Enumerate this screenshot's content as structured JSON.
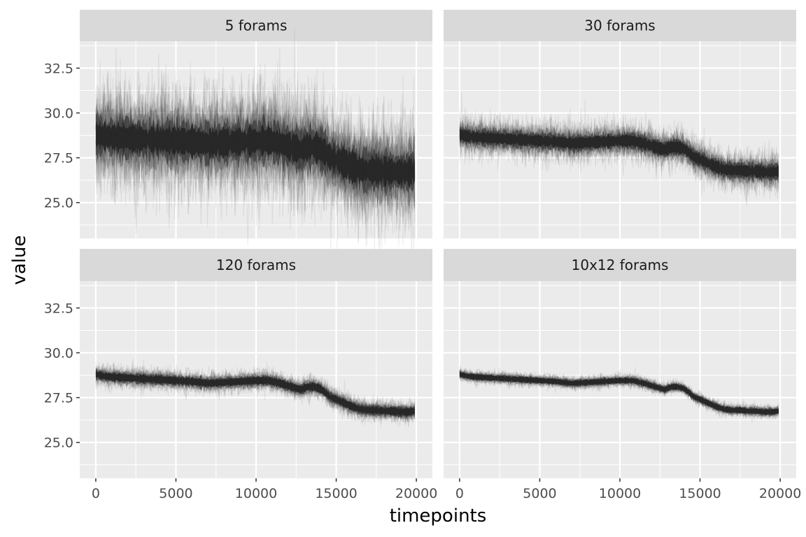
{
  "chart_data": {
    "type": "line",
    "xlabel": "timepoints",
    "ylabel": "value",
    "xlim": [
      -1000,
      21000
    ],
    "ylim": [
      23.0,
      34.0
    ],
    "x_ticks": [
      0,
      5000,
      10000,
      15000,
      20000
    ],
    "x_tick_labels": [
      "0",
      "5000",
      "10000",
      "15000",
      "20000"
    ],
    "y_ticks": [
      25.0,
      27.5,
      30.0,
      32.5
    ],
    "y_tick_labels": [
      "25.0",
      "27.5",
      "30.0",
      "32.5"
    ],
    "grid": true,
    "panel_background": "#ebebeb",
    "strip_background": "#d9d9d9",
    "line_color": "#262626",
    "mean_path": {
      "x": [
        0,
        500,
        1000,
        2000,
        3000,
        4000,
        5000,
        6000,
        7000,
        8000,
        9000,
        10000,
        10800,
        11500,
        12200,
        12800,
        13200,
        13600,
        14000,
        14300,
        14600,
        15000,
        15500,
        16000,
        16500,
        17000,
        17500,
        18000,
        18500,
        19000,
        19500,
        19900
      ],
      "y": [
        28.8,
        28.7,
        28.65,
        28.6,
        28.55,
        28.5,
        28.45,
        28.4,
        28.3,
        28.35,
        28.4,
        28.45,
        28.45,
        28.3,
        28.1,
        27.95,
        28.1,
        28.1,
        28.0,
        27.8,
        27.55,
        27.4,
        27.2,
        27.0,
        26.85,
        26.8,
        26.8,
        26.75,
        26.75,
        26.7,
        26.7,
        26.75
      ]
    },
    "panels": [
      {
        "title": "5 forams",
        "spread": 1.5
      },
      {
        "title": "30 forams",
        "spread": 0.55
      },
      {
        "title": "120 forams",
        "spread": 0.3
      },
      {
        "title": "10x12 forams",
        "spread": 0.18
      }
    ]
  }
}
